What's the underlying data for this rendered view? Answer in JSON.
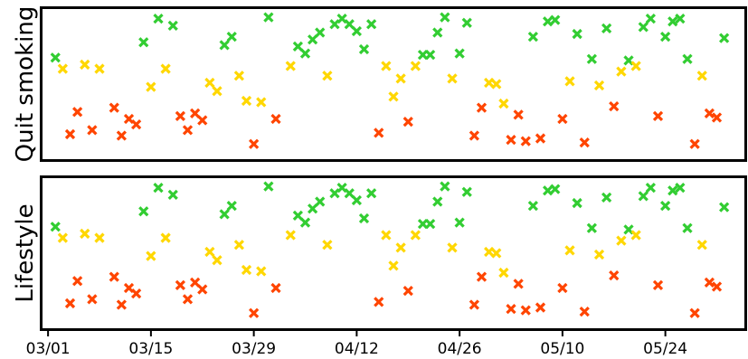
{
  "chart_data": {
    "type": "scatter",
    "marker": "x",
    "x_axis": {
      "type": "date",
      "range": [
        "2021-02-28",
        "2021-06-04"
      ],
      "tick_dates": [
        "2021-03-01",
        "2021-03-15",
        "2021-03-29",
        "2021-04-12",
        "2021-04-26",
        "2021-05-10",
        "2021-05-24"
      ],
      "tick_labels": [
        "03/01",
        "03/15",
        "03/29",
        "04/12",
        "04/26",
        "05/10",
        "05/24"
      ]
    },
    "colors": {
      "red": "#ff4500",
      "yellow": "#ffd700",
      "green": "#32cd32"
    },
    "shared_x": true,
    "panels": [
      {
        "ylabel": "Quit smoking",
        "ylim": [
          0,
          100
        ],
        "yticks": "none",
        "points": [
          [
            "2021-03-02",
            69,
            "green"
          ],
          [
            "2021-03-03",
            61,
            "yellow"
          ],
          [
            "2021-03-04",
            14,
            "red"
          ],
          [
            "2021-03-05",
            30,
            "red"
          ],
          [
            "2021-03-06",
            64,
            "yellow"
          ],
          [
            "2021-03-07",
            17,
            "red"
          ],
          [
            "2021-03-08",
            61,
            "yellow"
          ],
          [
            "2021-03-10",
            33,
            "red"
          ],
          [
            "2021-03-11",
            13,
            "red"
          ],
          [
            "2021-03-12",
            25,
            "red"
          ],
          [
            "2021-03-13",
            21,
            "red"
          ],
          [
            "2021-03-14",
            80,
            "green"
          ],
          [
            "2021-03-15",
            48,
            "yellow"
          ],
          [
            "2021-03-16",
            97,
            "green"
          ],
          [
            "2021-03-17",
            61,
            "yellow"
          ],
          [
            "2021-03-18",
            92,
            "green"
          ],
          [
            "2021-03-19",
            27,
            "red"
          ],
          [
            "2021-03-20",
            17,
            "red"
          ],
          [
            "2021-03-21",
            29,
            "red"
          ],
          [
            "2021-03-22",
            24,
            "red"
          ],
          [
            "2021-03-23",
            51,
            "yellow"
          ],
          [
            "2021-03-24",
            45,
            "yellow"
          ],
          [
            "2021-03-25",
            78,
            "green"
          ],
          [
            "2021-03-26",
            84,
            "green"
          ],
          [
            "2021-03-27",
            56,
            "yellow"
          ],
          [
            "2021-03-28",
            38,
            "yellow"
          ],
          [
            "2021-03-29",
            7,
            "red"
          ],
          [
            "2021-03-30",
            37,
            "yellow"
          ],
          [
            "2021-03-31",
            98,
            "green"
          ],
          [
            "2021-04-01",
            25,
            "red"
          ],
          [
            "2021-04-03",
            63,
            "yellow"
          ],
          [
            "2021-04-04",
            77,
            "green"
          ],
          [
            "2021-04-05",
            72,
            "green"
          ],
          [
            "2021-04-06",
            82,
            "green"
          ],
          [
            "2021-04-07",
            87,
            "green"
          ],
          [
            "2021-04-08",
            56,
            "yellow"
          ],
          [
            "2021-04-09",
            93,
            "green"
          ],
          [
            "2021-04-10",
            97,
            "green"
          ],
          [
            "2021-04-11",
            93,
            "green"
          ],
          [
            "2021-04-12",
            88,
            "green"
          ],
          [
            "2021-04-13",
            75,
            "green"
          ],
          [
            "2021-04-14",
            93,
            "green"
          ],
          [
            "2021-04-15",
            15,
            "red"
          ],
          [
            "2021-04-16",
            63,
            "yellow"
          ],
          [
            "2021-04-17",
            41,
            "yellow"
          ],
          [
            "2021-04-18",
            54,
            "yellow"
          ],
          [
            "2021-04-19",
            23,
            "red"
          ],
          [
            "2021-04-20",
            63,
            "yellow"
          ],
          [
            "2021-04-21",
            71,
            "green"
          ],
          [
            "2021-04-22",
            71,
            "green"
          ],
          [
            "2021-04-23",
            87,
            "green"
          ],
          [
            "2021-04-24",
            98,
            "green"
          ],
          [
            "2021-04-25",
            54,
            "yellow"
          ],
          [
            "2021-04-26",
            72,
            "green"
          ],
          [
            "2021-04-27",
            94,
            "green"
          ],
          [
            "2021-04-28",
            13,
            "red"
          ],
          [
            "2021-04-29",
            33,
            "red"
          ],
          [
            "2021-04-30",
            51,
            "yellow"
          ],
          [
            "2021-05-01",
            50,
            "yellow"
          ],
          [
            "2021-05-02",
            36,
            "yellow"
          ],
          [
            "2021-05-03",
            10,
            "red"
          ],
          [
            "2021-05-04",
            28,
            "red"
          ],
          [
            "2021-05-05",
            9,
            "red"
          ],
          [
            "2021-05-06",
            84,
            "green"
          ],
          [
            "2021-05-07",
            11,
            "red"
          ],
          [
            "2021-05-08",
            95,
            "green"
          ],
          [
            "2021-05-09",
            96,
            "green"
          ],
          [
            "2021-05-10",
            25,
            "red"
          ],
          [
            "2021-05-11",
            52,
            "yellow"
          ],
          [
            "2021-05-12",
            86,
            "green"
          ],
          [
            "2021-05-13",
            8,
            "red"
          ],
          [
            "2021-05-14",
            68,
            "green"
          ],
          [
            "2021-05-15",
            49,
            "yellow"
          ],
          [
            "2021-05-16",
            90,
            "green"
          ],
          [
            "2021-05-17",
            34,
            "red"
          ],
          [
            "2021-05-18",
            59,
            "yellow"
          ],
          [
            "2021-05-19",
            67,
            "green"
          ],
          [
            "2021-05-20",
            63,
            "yellow"
          ],
          [
            "2021-05-21",
            91,
            "green"
          ],
          [
            "2021-05-22",
            97,
            "green"
          ],
          [
            "2021-05-23",
            27,
            "red"
          ],
          [
            "2021-05-24",
            84,
            "green"
          ],
          [
            "2021-05-25",
            95,
            "green"
          ],
          [
            "2021-05-26",
            97,
            "green"
          ],
          [
            "2021-05-27",
            68,
            "green"
          ],
          [
            "2021-05-28",
            7,
            "red"
          ],
          [
            "2021-05-29",
            56,
            "yellow"
          ],
          [
            "2021-05-30",
            29,
            "red"
          ],
          [
            "2021-05-31",
            26,
            "red"
          ],
          [
            "2021-06-01",
            83,
            "green"
          ]
        ]
      },
      {
        "ylabel": "Lifestyle",
        "ylim": [
          0,
          100
        ],
        "yticks": "none",
        "points": [
          [
            "2021-03-02",
            69,
            "green"
          ],
          [
            "2021-03-03",
            61,
            "yellow"
          ],
          [
            "2021-03-04",
            14,
            "red"
          ],
          [
            "2021-03-05",
            30,
            "red"
          ],
          [
            "2021-03-06",
            64,
            "yellow"
          ],
          [
            "2021-03-07",
            17,
            "red"
          ],
          [
            "2021-03-08",
            61,
            "yellow"
          ],
          [
            "2021-03-10",
            33,
            "red"
          ],
          [
            "2021-03-11",
            13,
            "red"
          ],
          [
            "2021-03-12",
            25,
            "red"
          ],
          [
            "2021-03-13",
            21,
            "red"
          ],
          [
            "2021-03-14",
            80,
            "green"
          ],
          [
            "2021-03-15",
            48,
            "yellow"
          ],
          [
            "2021-03-16",
            97,
            "green"
          ],
          [
            "2021-03-17",
            61,
            "yellow"
          ],
          [
            "2021-03-18",
            92,
            "green"
          ],
          [
            "2021-03-19",
            27,
            "red"
          ],
          [
            "2021-03-20",
            17,
            "red"
          ],
          [
            "2021-03-21",
            29,
            "red"
          ],
          [
            "2021-03-22",
            24,
            "red"
          ],
          [
            "2021-03-23",
            51,
            "yellow"
          ],
          [
            "2021-03-24",
            45,
            "yellow"
          ],
          [
            "2021-03-25",
            78,
            "green"
          ],
          [
            "2021-03-26",
            84,
            "green"
          ],
          [
            "2021-03-27",
            56,
            "yellow"
          ],
          [
            "2021-03-28",
            38,
            "yellow"
          ],
          [
            "2021-03-29",
            7,
            "red"
          ],
          [
            "2021-03-30",
            37,
            "yellow"
          ],
          [
            "2021-03-31",
            98,
            "green"
          ],
          [
            "2021-04-01",
            25,
            "red"
          ],
          [
            "2021-04-03",
            63,
            "yellow"
          ],
          [
            "2021-04-04",
            77,
            "green"
          ],
          [
            "2021-04-05",
            72,
            "green"
          ],
          [
            "2021-04-06",
            82,
            "green"
          ],
          [
            "2021-04-07",
            87,
            "green"
          ],
          [
            "2021-04-08",
            56,
            "yellow"
          ],
          [
            "2021-04-09",
            93,
            "green"
          ],
          [
            "2021-04-10",
            97,
            "green"
          ],
          [
            "2021-04-11",
            93,
            "green"
          ],
          [
            "2021-04-12",
            88,
            "green"
          ],
          [
            "2021-04-13",
            75,
            "green"
          ],
          [
            "2021-04-14",
            93,
            "green"
          ],
          [
            "2021-04-15",
            15,
            "red"
          ],
          [
            "2021-04-16",
            63,
            "yellow"
          ],
          [
            "2021-04-17",
            41,
            "yellow"
          ],
          [
            "2021-04-18",
            54,
            "yellow"
          ],
          [
            "2021-04-19",
            23,
            "red"
          ],
          [
            "2021-04-20",
            63,
            "yellow"
          ],
          [
            "2021-04-21",
            71,
            "green"
          ],
          [
            "2021-04-22",
            71,
            "green"
          ],
          [
            "2021-04-23",
            87,
            "green"
          ],
          [
            "2021-04-24",
            98,
            "green"
          ],
          [
            "2021-04-25",
            54,
            "yellow"
          ],
          [
            "2021-04-26",
            72,
            "green"
          ],
          [
            "2021-04-27",
            94,
            "green"
          ],
          [
            "2021-04-28",
            13,
            "red"
          ],
          [
            "2021-04-29",
            33,
            "red"
          ],
          [
            "2021-04-30",
            51,
            "yellow"
          ],
          [
            "2021-05-01",
            50,
            "yellow"
          ],
          [
            "2021-05-02",
            36,
            "yellow"
          ],
          [
            "2021-05-03",
            10,
            "red"
          ],
          [
            "2021-05-04",
            28,
            "red"
          ],
          [
            "2021-05-05",
            9,
            "red"
          ],
          [
            "2021-05-06",
            84,
            "green"
          ],
          [
            "2021-05-07",
            11,
            "red"
          ],
          [
            "2021-05-08",
            95,
            "green"
          ],
          [
            "2021-05-09",
            96,
            "green"
          ],
          [
            "2021-05-10",
            25,
            "red"
          ],
          [
            "2021-05-11",
            52,
            "yellow"
          ],
          [
            "2021-05-12",
            86,
            "green"
          ],
          [
            "2021-05-13",
            8,
            "red"
          ],
          [
            "2021-05-14",
            68,
            "green"
          ],
          [
            "2021-05-15",
            49,
            "yellow"
          ],
          [
            "2021-05-16",
            90,
            "green"
          ],
          [
            "2021-05-17",
            34,
            "red"
          ],
          [
            "2021-05-18",
            59,
            "yellow"
          ],
          [
            "2021-05-19",
            67,
            "green"
          ],
          [
            "2021-05-20",
            63,
            "yellow"
          ],
          [
            "2021-05-21",
            91,
            "green"
          ],
          [
            "2021-05-22",
            97,
            "green"
          ],
          [
            "2021-05-23",
            27,
            "red"
          ],
          [
            "2021-05-24",
            84,
            "green"
          ],
          [
            "2021-05-25",
            95,
            "green"
          ],
          [
            "2021-05-26",
            97,
            "green"
          ],
          [
            "2021-05-27",
            68,
            "green"
          ],
          [
            "2021-05-28",
            7,
            "red"
          ],
          [
            "2021-05-29",
            56,
            "yellow"
          ],
          [
            "2021-05-30",
            29,
            "red"
          ],
          [
            "2021-05-31",
            26,
            "red"
          ],
          [
            "2021-06-01",
            83,
            "green"
          ]
        ]
      }
    ]
  }
}
